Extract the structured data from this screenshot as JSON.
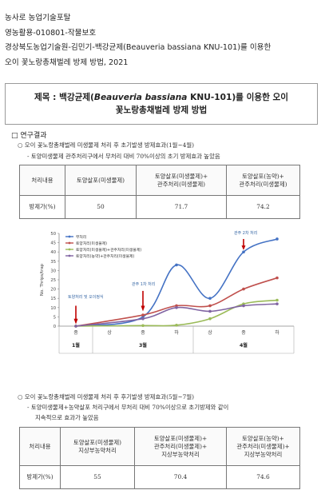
{
  "header": {
    "line1": "농사로 농업기술포탈",
    "line2": "영농활용-010801-작물보호",
    "line3": "경상북도농업기술원-김민기-백강균제(Beauveria bassiana KNU-101)를 이용한",
    "line4": "오이 꽃노랑총채벌레 방제 방법, 2021"
  },
  "title": {
    "prefix": "제목 : 백강균제(",
    "species": "Beauveria bassiana",
    "suffix": " KNU-101)를 이용한 오이",
    "line2": "꽃노랑총채벌레 방제 방법"
  },
  "section": {
    "checkbox": "□",
    "heading": "연구결과"
  },
  "result1": {
    "bullet": "○ 오이 꽃노랑총채벌레 미생물제 처리 후 초기발생 방제효과(1월~4월)",
    "detail": "- 토양미생물제 관주처리구에서 무처리 대비 70%이상의 초기 방제효과 높았음",
    "table": {
      "corner": "처리내용",
      "cols": [
        "토양살포(미생물제)",
        "토양살포(미생물제)+",
        "토양살포(농약)+"
      ],
      "cols_line2": [
        "",
        "관주처리(미생물제)",
        "관주처리(미생물제)"
      ],
      "row_label": "방제가(%)",
      "values": [
        "50",
        "71.7",
        "74.2"
      ]
    }
  },
  "chart_data": {
    "type": "line",
    "ylabel": "No. Thrips/trap",
    "ylim": [
      0,
      50
    ],
    "yticks": [
      "0",
      "5",
      "10",
      "15",
      "20",
      "25",
      "30",
      "35",
      "40",
      "45",
      "50"
    ],
    "categories": [
      "중",
      "상",
      "중",
      "하",
      "상",
      "중",
      "하"
    ],
    "month_labels": [
      "1월",
      "3월",
      "4월"
    ],
    "series": [
      {
        "name": "무처리",
        "color": "#4472c4",
        "values": [
          0,
          null,
          5,
          33,
          15,
          40,
          47
        ]
      },
      {
        "name": "토양처리(미생물제)",
        "color": "#c0504d",
        "values": [
          0,
          null,
          6,
          11,
          11,
          20,
          26
        ]
      },
      {
        "name": "토양처리(미생물제)+관주처리(미생물제)",
        "color": "#9bbb59",
        "values": [
          0,
          null,
          0.3,
          0.5,
          4,
          12,
          14
        ]
      },
      {
        "name": "토양처리(농약)+관주처리(미생물제)",
        "color": "#8064a2",
        "values": [
          0,
          null,
          4,
          10,
          8,
          11,
          12
        ]
      }
    ],
    "annotations": [
      {
        "text": "토양처리 및 오이정식",
        "at_category": 0
      },
      {
        "text": "관주 1차 처리",
        "at_category": 2
      },
      {
        "text": "관주 2차 처리",
        "at_category": 5
      }
    ]
  },
  "result2": {
    "bullet": "○ 오이 꽃노랑총채벌레 미생물제 처리 후 후기발생 방제효과(5월~7월)",
    "detail1": "- 토양미생물제+농약살포 처리구에서 무처리 대비 70%이상으로 초기방제와 같이",
    "detail2": "지속적으로 효과가 높았음",
    "table": {
      "corner": "처리내용",
      "cols": [
        [
          "토양살포(미생물제)",
          "지상부농약처리"
        ],
        [
          "토양살포(미생물제)+",
          "관주처리(미생물제)+",
          "지상부농약처리"
        ],
        [
          "토양살포(농약)+",
          "관주처리(미생물제)+",
          "지상부농약처리"
        ]
      ],
      "row_label": "방제가(%)",
      "values": [
        "55",
        "70.4",
        "74.6"
      ]
    }
  }
}
